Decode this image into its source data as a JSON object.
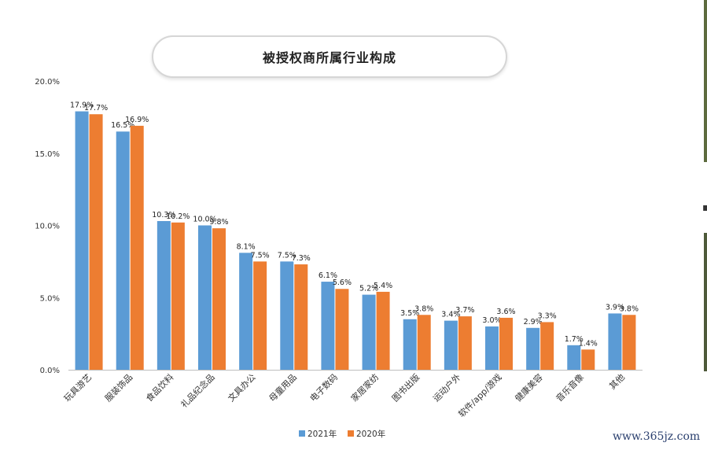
{
  "title": "被授权商所属行业构成",
  "watermark": "www.365jz.com",
  "colors": {
    "series_2021": "#5b9bd5",
    "series_2020": "#ed7d31"
  },
  "chart_data": {
    "type": "bar",
    "title": "被授权商所属行业构成",
    "categories": [
      "玩具游艺",
      "服装饰品",
      "食品饮料",
      "礼品纪念品",
      "文具办公",
      "母童用品",
      "电子数码",
      "家居家纺",
      "图书出版",
      "运动户外",
      "软件/app/游戏",
      "健康美容",
      "音乐音像",
      "其他"
    ],
    "series": [
      {
        "name": "2021年",
        "values": [
          17.9,
          16.5,
          10.3,
          10.0,
          8.1,
          7.5,
          6.1,
          5.2,
          3.5,
          3.4,
          3.0,
          2.9,
          1.7,
          3.9
        ],
        "labels": [
          "17.9%",
          "16.5%",
          "10.3%",
          "10.0%",
          "8.1%",
          "7.5%",
          "6.1%",
          "5.2%",
          "3.5%",
          "3.4%",
          "3.0%",
          "2.9%",
          "1.7%",
          "3.9%"
        ]
      },
      {
        "name": "2020年",
        "values": [
          17.7,
          16.9,
          10.2,
          9.8,
          7.5,
          7.3,
          5.6,
          5.4,
          3.8,
          3.7,
          3.6,
          3.3,
          1.4,
          3.8
        ],
        "labels": [
          "17.7%",
          "16.9%",
          "10.2%",
          "9.8%",
          "7.5%",
          "7.3%",
          "5.6%",
          "5.4%",
          "3.8%",
          "3.7%",
          "3.6%",
          "3.3%",
          "1.4%",
          "3.8%"
        ]
      }
    ],
    "ylim": [
      0,
      20
    ],
    "yticks": [
      0,
      5,
      10,
      15,
      20
    ],
    "ytick_labels": [
      "0.0%",
      "5.0%",
      "10.0%",
      "15.0%",
      "20.0%"
    ],
    "grid": false,
    "legend_position": "bottom"
  }
}
